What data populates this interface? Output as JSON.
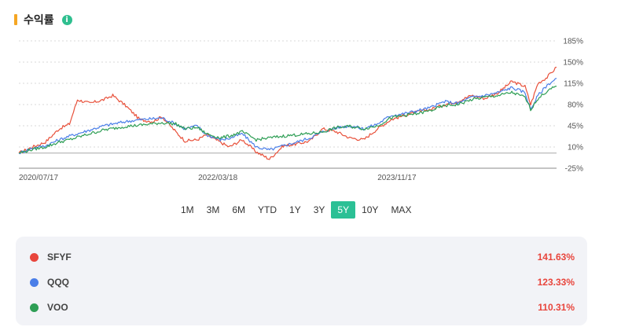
{
  "header": {
    "title": "수익률",
    "info_icon": "info-icon"
  },
  "chart_data": {
    "type": "line",
    "y_ticks": [
      "185%",
      "150%",
      "115%",
      "80%",
      "45%",
      "10%",
      "-25%"
    ],
    "y_tick_values": [
      185,
      150,
      115,
      80,
      45,
      10,
      -25
    ],
    "ylim": [
      -25,
      185
    ],
    "x_ticks": [
      "2020/07/17",
      "2022/03/18",
      "2023/11/17"
    ],
    "x_range": [
      "2020/07/17",
      "2025/07/17"
    ],
    "grid": true,
    "series": [
      {
        "name": "SFYF",
        "color": "#e8503a",
        "x": [
          "2020/07/17",
          "2020/09/01",
          "2020/10/15",
          "2020/12/01",
          "2021/01/05",
          "2021/02/01",
          "2021/03/15",
          "2021/05/01",
          "2021/06/01",
          "2021/07/15",
          "2021/09/01",
          "2021/10/15",
          "2021/11/15",
          "2022/01/01",
          "2022/02/01",
          "2022/03/15",
          "2022/04/15",
          "2022/06/01",
          "2022/07/01",
          "2022/08/15",
          "2022/10/01",
          "2022/11/15",
          "2023/01/01",
          "2023/02/15",
          "2023/04/01",
          "2023/05/15",
          "2023/07/01",
          "2023/08/15",
          "2023/10/01",
          "2023/11/17",
          "2024/01/01",
          "2024/02/15",
          "2024/04/01",
          "2024/05/15",
          "2024/07/01",
          "2024/08/15",
          "2024/10/01",
          "2024/11/15",
          "2025/01/01",
          "2025/02/15",
          "2025/04/01",
          "2025/04/20",
          "2025/05/15",
          "2025/06/15",
          "2025/07/17"
        ],
        "values": [
          0,
          10,
          18,
          40,
          48,
          88,
          82,
          88,
          95,
          78,
          55,
          52,
          60,
          35,
          20,
          22,
          30,
          18,
          10,
          22,
          2,
          -10,
          12,
          15,
          20,
          40,
          35,
          25,
          22,
          40,
          55,
          62,
          68,
          72,
          80,
          85,
          95,
          90,
          100,
          118,
          110,
          80,
          115,
          125,
          141.63
        ]
      },
      {
        "name": "QQQ",
        "color": "#4a7ee8",
        "x": [
          "2020/07/17",
          "2020/09/01",
          "2020/10/15",
          "2020/12/01",
          "2021/01/05",
          "2021/03/15",
          "2021/05/01",
          "2021/07/15",
          "2021/09/01",
          "2021/11/15",
          "2022/01/01",
          "2022/02/01",
          "2022/03/15",
          "2022/04/15",
          "2022/06/01",
          "2022/07/01",
          "2022/08/15",
          "2022/10/01",
          "2022/11/15",
          "2023/01/01",
          "2023/02/15",
          "2023/04/01",
          "2023/05/15",
          "2023/07/01",
          "2023/08/15",
          "2023/10/01",
          "2023/11/17",
          "2024/01/01",
          "2024/02/15",
          "2024/04/01",
          "2024/05/15",
          "2024/07/01",
          "2024/08/15",
          "2024/10/01",
          "2024/11/15",
          "2025/01/01",
          "2025/02/15",
          "2025/04/01",
          "2025/04/20",
          "2025/05/15",
          "2025/06/15",
          "2025/07/17"
        ],
        "values": [
          0,
          8,
          12,
          22,
          28,
          38,
          45,
          52,
          55,
          58,
          48,
          40,
          45,
          30,
          22,
          24,
          32,
          10,
          5,
          12,
          18,
          25,
          35,
          42,
          45,
          40,
          48,
          62,
          65,
          70,
          75,
          85,
          82,
          92,
          95,
          100,
          108,
          100,
          72,
          95,
          112,
          123.33
        ]
      },
      {
        "name": "VOO",
        "color": "#2e9e55",
        "x": [
          "2020/07/17",
          "2020/09/01",
          "2020/10/15",
          "2020/12/01",
          "2021/01/05",
          "2021/03/15",
          "2021/05/01",
          "2021/07/15",
          "2021/09/01",
          "2021/11/15",
          "2022/01/01",
          "2022/02/01",
          "2022/03/15",
          "2022/04/15",
          "2022/06/01",
          "2022/07/01",
          "2022/08/15",
          "2022/10/01",
          "2022/11/15",
          "2023/01/01",
          "2023/02/15",
          "2023/04/01",
          "2023/05/15",
          "2023/07/01",
          "2023/08/15",
          "2023/10/01",
          "2023/11/17",
          "2024/01/01",
          "2024/02/15",
          "2024/04/01",
          "2024/05/15",
          "2024/07/01",
          "2024/08/15",
          "2024/10/01",
          "2024/11/15",
          "2025/01/01",
          "2025/02/15",
          "2025/04/01",
          "2025/04/20",
          "2025/05/15",
          "2025/06/15",
          "2025/07/17"
        ],
        "values": [
          0,
          6,
          10,
          18,
          22,
          32,
          38,
          44,
          46,
          50,
          48,
          40,
          42,
          32,
          25,
          28,
          35,
          22,
          25,
          28,
          30,
          32,
          35,
          42,
          44,
          40,
          45,
          58,
          62,
          65,
          70,
          78,
          80,
          88,
          92,
          95,
          100,
          92,
          72,
          90,
          102,
          110.31
        ]
      }
    ]
  },
  "ranges": {
    "items": [
      "1M",
      "3M",
      "6M",
      "YTD",
      "1Y",
      "3Y",
      "5Y",
      "10Y",
      "MAX"
    ],
    "active": "5Y"
  },
  "legend": {
    "items": [
      {
        "name": "SFYF",
        "value": "141.63%",
        "color": "#e8453c"
      },
      {
        "name": "QQQ",
        "value": "123.33%",
        "color": "#4a7ee8"
      },
      {
        "name": "VOO",
        "value": "110.31%",
        "color": "#2e9e55"
      }
    ]
  }
}
